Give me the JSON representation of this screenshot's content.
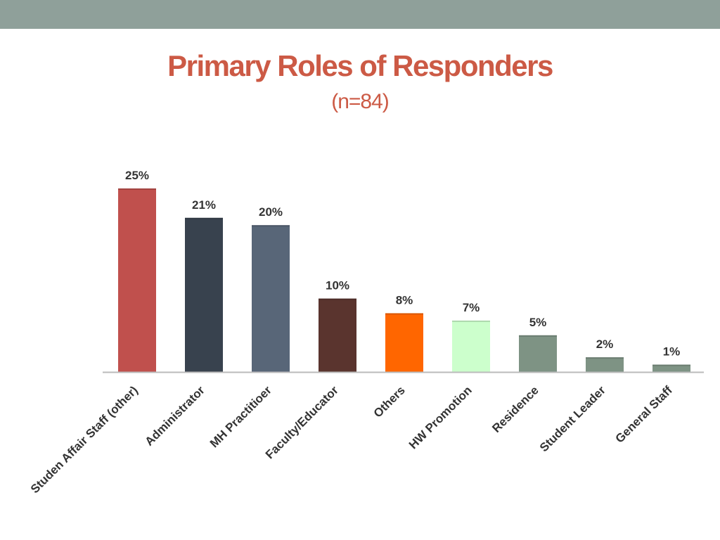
{
  "slide": {
    "title": "Primary Roles of Responders",
    "subtitle": "(n=84)"
  },
  "chart_data": {
    "type": "bar",
    "title": "Primary Roles of Responders",
    "subtitle": "(n=84)",
    "xlabel": "",
    "ylabel": "",
    "ylim": [
      0,
      25
    ],
    "grid": false,
    "categories": [
      "Studen Affair Staff (other)",
      "Administrator",
      "MH Practitioer",
      "Faculty/Educator",
      "Others",
      "HW Promotion",
      "Residence",
      "Student Leader",
      "General Staff"
    ],
    "values": [
      25,
      21,
      20,
      10,
      8,
      7,
      5,
      2,
      1
    ],
    "data_labels": [
      "25%",
      "21%",
      "20%",
      "10%",
      "8%",
      "7%",
      "5%",
      "2%",
      "1%"
    ],
    "bar_colors": [
      "#c0504d",
      "#38424e",
      "#586678",
      "#5a342e",
      "#ff6600",
      "#ccffcc",
      "#7e9384",
      "#7e9384",
      "#7e9384"
    ]
  },
  "colors": {
    "top_band": "#8fa09a",
    "title": "#cc5a45",
    "axis": "#bbbbbb",
    "text": "#333333"
  }
}
